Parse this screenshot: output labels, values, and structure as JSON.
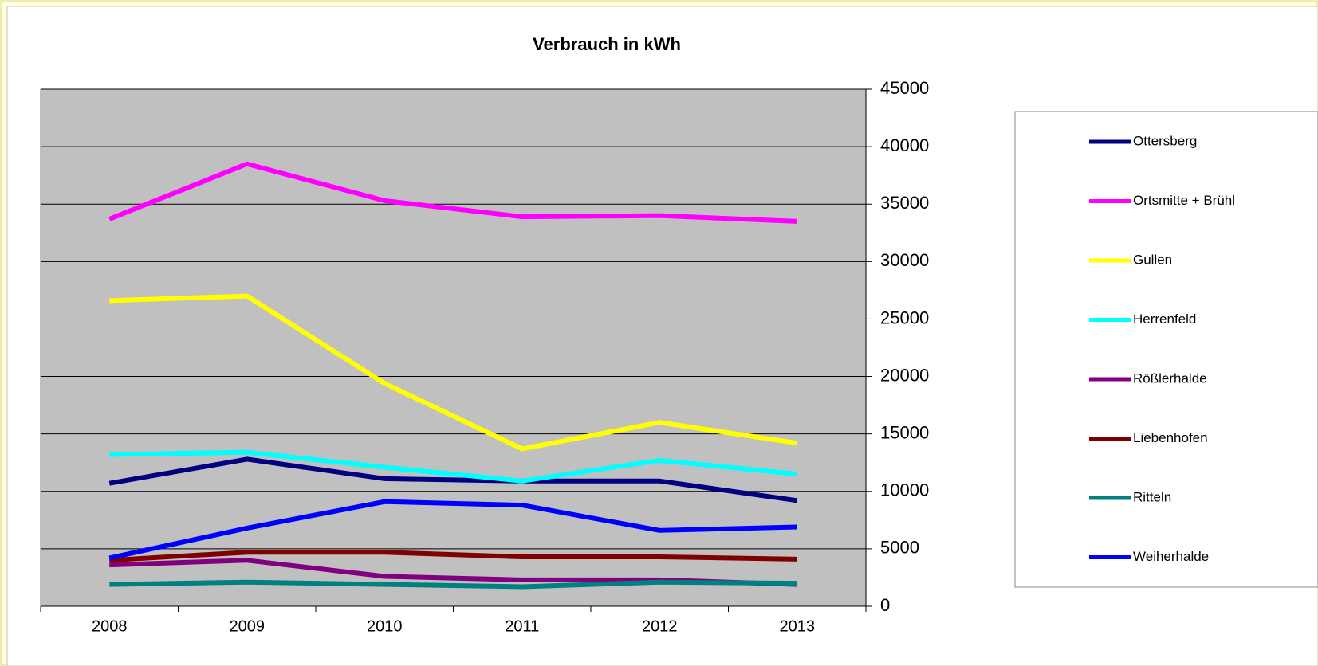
{
  "chart_data": {
    "type": "line",
    "title": "Verbrauch in kWh",
    "categories": [
      "2008",
      "2009",
      "2010",
      "2011",
      "2012",
      "2013"
    ],
    "series": [
      {
        "name": "Ottersberg",
        "color": "#000080",
        "values": [
          10700,
          12800,
          11100,
          10900,
          10900,
          9200
        ]
      },
      {
        "name": "Ortsmitte + Brühl",
        "color": "#ff00ff",
        "values": [
          33700,
          38500,
          35300,
          33900,
          34000,
          33500
        ]
      },
      {
        "name": "Gullen",
        "color": "#ffff00",
        "values": [
          26600,
          27000,
          19400,
          13700,
          16000,
          14200
        ]
      },
      {
        "name": "Herrenfeld",
        "color": "#00ffff",
        "values": [
          13200,
          13400,
          12100,
          10900,
          12700,
          11500
        ]
      },
      {
        "name": "Rößlerhalde",
        "color": "#800080",
        "values": [
          3600,
          4000,
          2600,
          2300,
          2300,
          1900
        ]
      },
      {
        "name": "Liebenhofen",
        "color": "#800000",
        "values": [
          4000,
          4700,
          4700,
          4300,
          4300,
          4100
        ]
      },
      {
        "name": "Ritteln",
        "color": "#008080",
        "values": [
          1900,
          2100,
          1900,
          1700,
          2100,
          2000
        ]
      },
      {
        "name": "Weiherhalde",
        "color": "#0000ff",
        "values": [
          4200,
          6800,
          9100,
          8800,
          6600,
          6900
        ]
      }
    ],
    "ylim": [
      0,
      45000
    ],
    "yticks": [
      0,
      5000,
      10000,
      15000,
      20000,
      25000,
      30000,
      35000,
      40000,
      45000
    ],
    "grid": true,
    "plot_background": "#c0c0c0",
    "y_axis_side": "right",
    "legend": "right"
  }
}
